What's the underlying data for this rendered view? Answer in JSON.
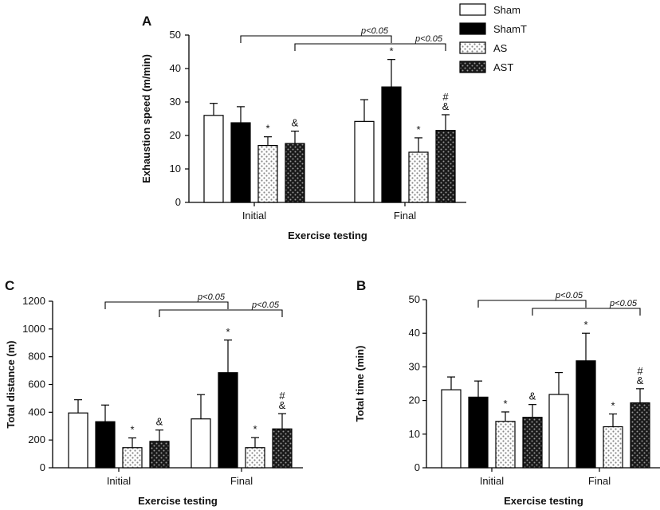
{
  "legend": [
    {
      "name": "Sham",
      "fill": "white"
    },
    {
      "name": "ShamT",
      "fill": "black"
    },
    {
      "name": "AS",
      "fill": "dots"
    },
    {
      "name": "AST",
      "fill": "dark"
    }
  ],
  "colors": {
    "bar_edge": "#000000",
    "axis": "#000000",
    "text": "#111111"
  },
  "chart_data": [
    {
      "panel": "A",
      "type": "bar",
      "title": "",
      "xlabel": "Exercise testing",
      "ylabel": "Exhaustion speed (m/min)",
      "categories": [
        "Initial",
        "Final"
      ],
      "ylim": [
        0,
        50
      ],
      "yticks": [
        "0",
        "10",
        "20",
        "30",
        "40",
        "50"
      ],
      "series": [
        {
          "name": "Sham",
          "values": [
            26,
            24.2
          ],
          "errors": [
            3.6,
            6.5
          ]
        },
        {
          "name": "ShamT",
          "values": [
            23.8,
            34.5
          ],
          "errors": [
            4.8,
            8.2
          ]
        },
        {
          "name": "AS",
          "values": [
            17,
            15
          ],
          "errors": [
            2.6,
            4.3
          ]
        },
        {
          "name": "AST",
          "values": [
            17.6,
            21.5
          ],
          "errors": [
            3.7,
            4.7
          ]
        }
      ],
      "marks": [
        [
          "",
          "",
          "*",
          "&"
        ],
        [
          "",
          "*",
          "*",
          "#\n&"
        ]
      ],
      "brackets": [
        {
          "from": [
            0,
            1
          ],
          "to": [
            1,
            1
          ],
          "label": "p<0.05"
        },
        {
          "from": [
            0,
            3
          ],
          "to": [
            1,
            3
          ],
          "label": "p<0.05"
        }
      ]
    },
    {
      "panel": "C",
      "type": "bar",
      "title": "",
      "xlabel": "Exercise testing",
      "ylabel": "Total distance (m)",
      "categories": [
        "Initial",
        "Final"
      ],
      "ylim": [
        0,
        1200
      ],
      "yticks": [
        "0",
        "200",
        "400",
        "600",
        "800",
        "1000",
        "1200"
      ],
      "series": [
        {
          "name": "Sham",
          "values": [
            395,
            352
          ],
          "errors": [
            95,
            175
          ]
        },
        {
          "name": "ShamT",
          "values": [
            332,
            685
          ],
          "errors": [
            120,
            235
          ]
        },
        {
          "name": "AS",
          "values": [
            145,
            145
          ],
          "errors": [
            70,
            72
          ]
        },
        {
          "name": "AST",
          "values": [
            190,
            280
          ],
          "errors": [
            82,
            110
          ]
        }
      ],
      "marks": [
        [
          "",
          "",
          "*",
          "&"
        ],
        [
          "",
          "*",
          "*",
          "#\n&"
        ]
      ],
      "brackets": [
        {
          "from": [
            0,
            1
          ],
          "to": [
            1,
            1
          ],
          "label": "p<0.05"
        },
        {
          "from": [
            0,
            3
          ],
          "to": [
            1,
            3
          ],
          "label": "p<0.05"
        }
      ]
    },
    {
      "panel": "B",
      "type": "bar",
      "title": "",
      "xlabel": "Exercise testing",
      "ylabel": "Total time (min)",
      "categories": [
        "Initial",
        "Final"
      ],
      "ylim": [
        0,
        50
      ],
      "yticks": [
        "0",
        "10",
        "20",
        "30",
        "40",
        "50"
      ],
      "series": [
        {
          "name": "Sham",
          "values": [
            23.2,
            21.8
          ],
          "errors": [
            3.8,
            6.5
          ]
        },
        {
          "name": "ShamT",
          "values": [
            21,
            31.8
          ],
          "errors": [
            4.8,
            8.2
          ]
        },
        {
          "name": "AS",
          "values": [
            13.8,
            12.2
          ],
          "errors": [
            2.8,
            3.8
          ]
        },
        {
          "name": "AST",
          "values": [
            15,
            19.3
          ],
          "errors": [
            3.8,
            4.2
          ]
        }
      ],
      "marks": [
        [
          "",
          "",
          "*",
          "&"
        ],
        [
          "",
          "*",
          "*",
          "#\n&"
        ]
      ],
      "brackets": [
        {
          "from": [
            0,
            1
          ],
          "to": [
            1,
            1
          ],
          "label": "p<0.05"
        },
        {
          "from": [
            0,
            3
          ],
          "to": [
            1,
            3
          ],
          "label": "p<0.05"
        }
      ]
    }
  ]
}
